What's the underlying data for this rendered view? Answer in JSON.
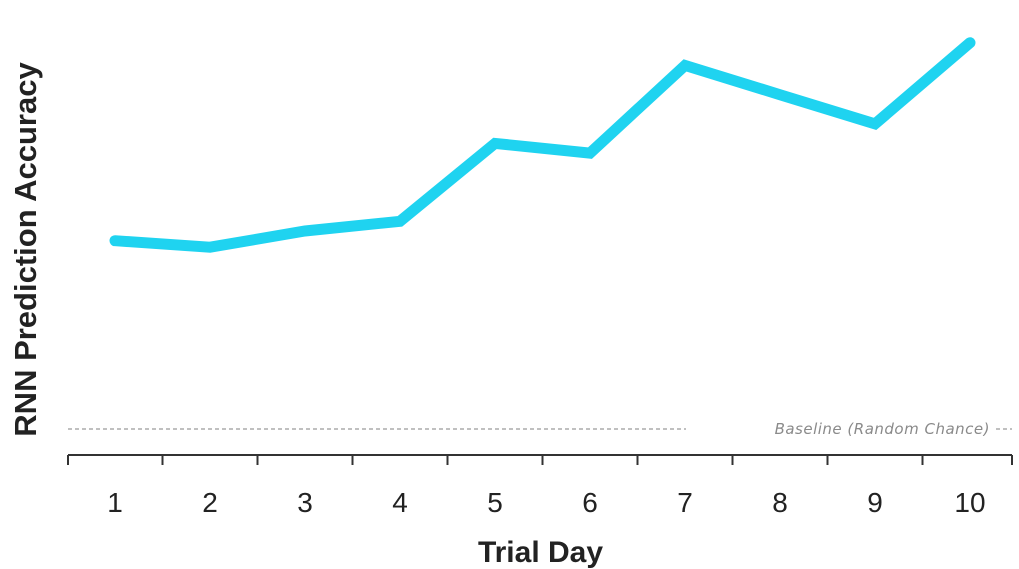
{
  "chart_data": {
    "type": "line",
    "title": "",
    "xlabel": "Trial Day",
    "ylabel": "RNN Prediction Accuracy",
    "categories": [
      "1",
      "2",
      "3",
      "4",
      "5",
      "6",
      "7",
      "8",
      "9",
      "10"
    ],
    "series": [
      {
        "values": [
          0.58,
          0.56,
          0.61,
          0.64,
          0.88,
          0.85,
          1.12,
          1.03,
          0.94,
          1.19
        ],
        "color": "#1fd3f0"
      }
    ],
    "baseline": {
      "label": "Baseline (Random Chance)",
      "value": 0.0,
      "style": "dashed",
      "color": "#9a9a9a"
    },
    "ylim": [
      -0.08,
      1.26
    ],
    "grid": false,
    "legend": "none",
    "y_ticks_shown": false
  }
}
